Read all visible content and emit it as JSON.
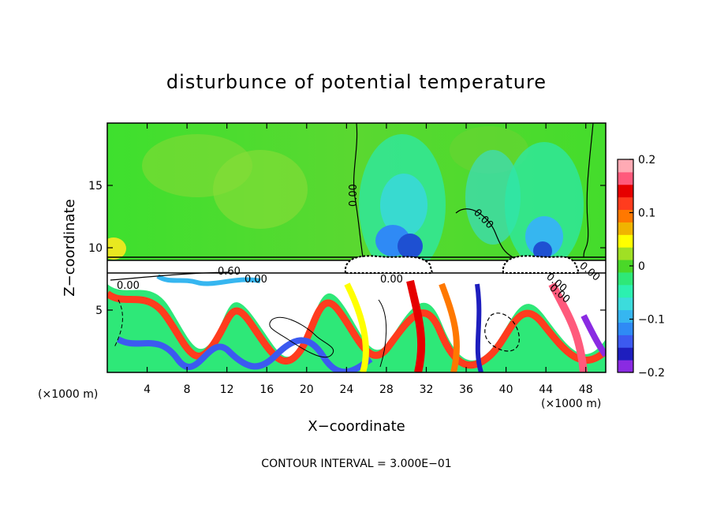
{
  "chart_data": {
    "type": "heatmap",
    "title": "disturbunce of potential temperature",
    "xlabel": "X−coordinate",
    "ylabel": "Z−coordinate",
    "x_unit": "(×1000 m)",
    "x_unit_right": "(×1000 m)",
    "xlim": [
      0,
      50
    ],
    "ylim": [
      0,
      20
    ],
    "x_ticks": [
      4,
      8,
      12,
      16,
      20,
      24,
      28,
      32,
      36,
      40,
      44,
      48
    ],
    "x_tick_labels": [
      "4",
      "8",
      "12",
      "16",
      "20",
      "24",
      "28",
      "32",
      "36",
      "40",
      "44",
      "48"
    ],
    "y_ticks": [
      5,
      10,
      15
    ],
    "y_tick_labels": [
      "5",
      "10",
      "15"
    ],
    "colorbar": {
      "range": [
        -0.2,
        0.2
      ],
      "ticks": [
        0.2,
        0.1,
        0,
        -0.1,
        -0.2
      ],
      "tick_labels": [
        "0.2",
        "0.1",
        "0",
        "−0.1",
        "−0.2"
      ],
      "colors": [
        "#8a2be2",
        "#1e1ebe",
        "#3c5af0",
        "#2f8af5",
        "#36b6f0",
        "#3cdcdc",
        "#2cf0b0",
        "#2ee878",
        "#4ad828",
        "#a0e024",
        "#ffff00",
        "#f0b400",
        "#ff7800",
        "#ff3c1e",
        "#e60000",
        "#ff5a7c",
        "#ffaab4"
      ]
    },
    "contour_labels": [
      "0.00",
      "0.00",
      "0.00",
      "0.60",
      "0.00",
      "0.00",
      "0.00",
      "0.00",
      "0.00"
    ],
    "contour_interval_text": "CONTOUR INTERVAL = 3.000E−01"
  }
}
